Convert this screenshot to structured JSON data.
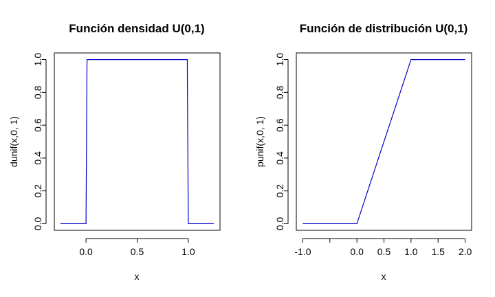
{
  "chart_data": [
    {
      "type": "line",
      "title": "Función densidad  U(0,1)",
      "xlabel": "x",
      "ylabel": "dunif(x,0, 1)",
      "xlim": [
        -0.25,
        1.25
      ],
      "ylim": [
        0,
        1
      ],
      "x_ticks": [
        0,
        0.5,
        1
      ],
      "x_tick_labels": [
        "0.0",
        "0.5",
        "1.0"
      ],
      "y_ticks": [
        0,
        0.2,
        0.4,
        0.6,
        0.8,
        1
      ],
      "y_tick_labels": [
        "0.0",
        "0.2",
        "0.4",
        "0.6",
        "0.8",
        "1.0"
      ],
      "grid": false,
      "series": [
        {
          "color": "#0000cc",
          "x": [
            -0.25,
            0,
            0.01,
            0.99,
            1,
            1.25
          ],
          "y": [
            0,
            0,
            1,
            1,
            0,
            0
          ]
        }
      ]
    },
    {
      "type": "line",
      "title": "Función de distribución U(0,1)",
      "xlabel": "x",
      "ylabel": "punif(x,0, 1)",
      "xlim": [
        -1,
        2
      ],
      "ylim": [
        0,
        1
      ],
      "x_ticks": [
        -1,
        -0.5,
        0,
        0.5,
        1,
        1.5,
        2
      ],
      "x_tick_labels": [
        "-1.0",
        "",
        "0.0",
        "0.5",
        "1.0",
        "1.5",
        "2.0"
      ],
      "y_ticks": [
        0,
        0.2,
        0.4,
        0.6,
        0.8,
        1
      ],
      "y_tick_labels": [
        "0.0",
        "0.2",
        "0.4",
        "0.6",
        "0.8",
        "1.0"
      ],
      "grid": false,
      "series": [
        {
          "color": "#0000cc",
          "x": [
            -1,
            0,
            1,
            2
          ],
          "y": [
            0,
            0,
            1,
            1
          ]
        }
      ]
    }
  ]
}
